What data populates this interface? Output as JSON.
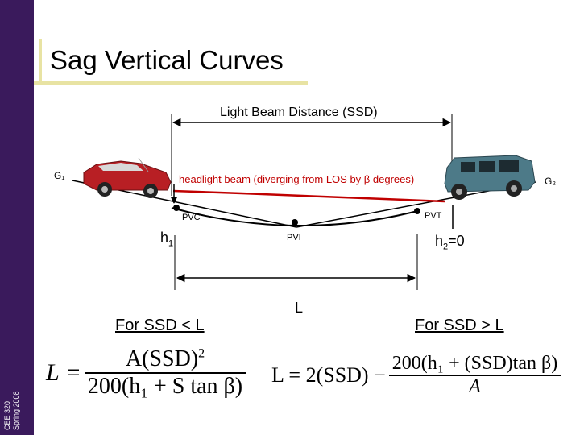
{
  "slide": {
    "title": "Sag Vertical Curves",
    "sidebar_course": "CEE 320",
    "sidebar_term": "Spring 2008",
    "accent_color": "#e8e3a3",
    "sidebar_color": "#3a1a5c"
  },
  "diagram": {
    "ssd_label": "Light Beam Distance (SSD)",
    "g1_label": "G₁",
    "g2_label": "G₂",
    "beam_label": "headlight beam (diverging from LOS by β degrees)",
    "pvc_label": "PVC",
    "pvt_label": "PVT",
    "pvi_label": "PVI",
    "h1_label": "h",
    "h1_sub": "1",
    "h2_label": "h",
    "h2_sub": "2",
    "h2_value": "=0",
    "l_label": "L",
    "beam_color": "#c00000"
  },
  "formulas": {
    "left_heading": "For SSD < L",
    "right_heading": "For SSD > L",
    "left_lhs": "L =",
    "left_num": "A(SSD)",
    "left_num_exp": "2",
    "left_den": "200(h₁ + S tan β)",
    "right_lhs": "L = 2(SSD) −",
    "right_num": "200(h₁ + (SSD)tan β)",
    "right_den": "A"
  }
}
